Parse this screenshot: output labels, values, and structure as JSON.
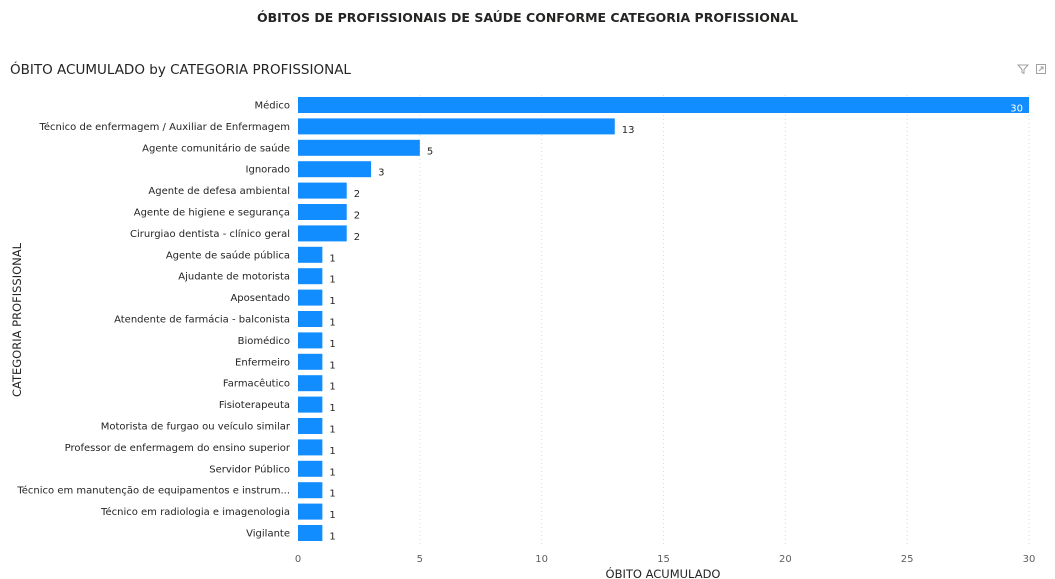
{
  "page": {
    "title": "ÓBITOS DE PROFISSIONAIS DE SAÚDE CONFORME CATEGORIA PROFISSIONAL"
  },
  "visual": {
    "title": "ÓBITO ACUMULADO by CATEGORIA PROFISSIONAL",
    "icons": [
      "filter-icon",
      "focus-mode-icon"
    ]
  },
  "chart_data": {
    "type": "bar",
    "orientation": "horizontal",
    "title": "ÓBITO ACUMULADO by CATEGORIA PROFISSIONAL",
    "xlabel": "ÓBITO ACUMULADO",
    "ylabel": "CATEGORIA PROFISSIONAL",
    "xlim": [
      0,
      30
    ],
    "xticks": [
      0,
      5,
      10,
      15,
      20,
      25,
      30
    ],
    "grid": true,
    "bar_color": "#118DFF",
    "categories": [
      "Médico",
      "Técnico de enfermagem / Auxiliar de Enfermagem",
      "Agente comunitário de saúde",
      "Ignorado",
      "Agente de defesa ambiental",
      "Agente de higiene e segurança",
      "Cirurgiao dentista - clínico geral",
      "Agente de saúde pública",
      "Ajudante de motorista",
      "Aposentado",
      "Atendente de farmácia - balconista",
      "Biomédico",
      "Enfermeiro",
      "Farmacêutico",
      "Fisioterapeuta",
      "Motorista de furgao ou veículo similar",
      "Professor de enfermagem do ensino superior",
      "Servidor Público",
      "Técnico em manutenção de equipamentos e instrum...",
      "Técnico em radiologia e imagenologia",
      "Vigilante"
    ],
    "values": [
      30,
      13,
      5,
      3,
      2,
      2,
      2,
      1,
      1,
      1,
      1,
      1,
      1,
      1,
      1,
      1,
      1,
      1,
      1,
      1,
      1
    ]
  }
}
